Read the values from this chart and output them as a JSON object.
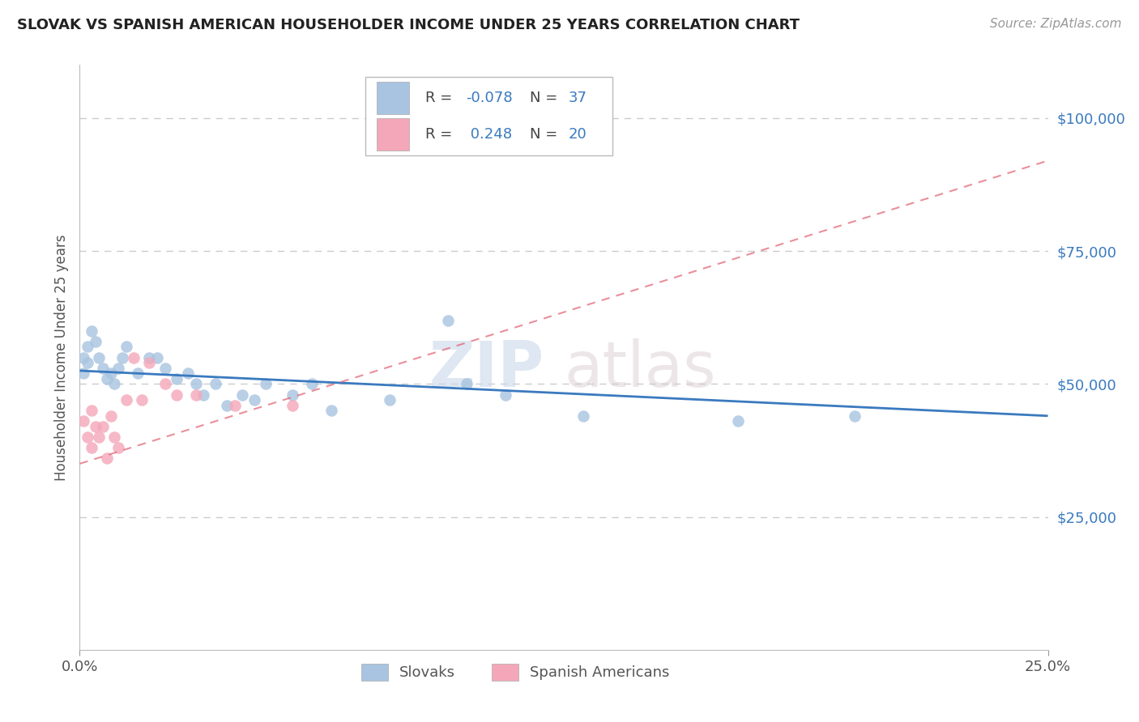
{
  "title": "SLOVAK VS SPANISH AMERICAN HOUSEHOLDER INCOME UNDER 25 YEARS CORRELATION CHART",
  "source": "Source: ZipAtlas.com",
  "ylabel": "Householder Income Under 25 years",
  "xlim": [
    0.0,
    0.25
  ],
  "ylim": [
    0,
    110000
  ],
  "ytick_values": [
    25000,
    50000,
    75000,
    100000
  ],
  "slovak_color": "#a8c4e0",
  "spanish_color": "#f4a7b9",
  "slovak_line_color": "#3a7abf",
  "spanish_line_color": "#e06070",
  "watermark_zip": "ZIP",
  "watermark_atlas": "atlas",
  "background_color": "#ffffff",
  "grid_color": "#cccccc",
  "r_slovak": -0.078,
  "n_slovak": 37,
  "r_spanish": 0.248,
  "n_spanish": 20,
  "slovak_x": [
    0.001,
    0.001,
    0.002,
    0.002,
    0.003,
    0.004,
    0.005,
    0.006,
    0.007,
    0.008,
    0.009,
    0.01,
    0.011,
    0.012,
    0.015,
    0.018,
    0.02,
    0.022,
    0.025,
    0.028,
    0.03,
    0.032,
    0.035,
    0.038,
    0.042,
    0.045,
    0.048,
    0.055,
    0.06,
    0.065,
    0.08,
    0.095,
    0.1,
    0.11,
    0.13,
    0.17,
    0.2
  ],
  "slovak_y": [
    55000,
    52000,
    57000,
    54000,
    60000,
    58000,
    55000,
    53000,
    51000,
    52000,
    50000,
    53000,
    55000,
    57000,
    52000,
    55000,
    55000,
    53000,
    51000,
    52000,
    50000,
    48000,
    50000,
    46000,
    48000,
    47000,
    50000,
    48000,
    50000,
    45000,
    47000,
    62000,
    50000,
    48000,
    44000,
    43000,
    44000
  ],
  "spanish_x": [
    0.001,
    0.002,
    0.003,
    0.003,
    0.004,
    0.005,
    0.006,
    0.007,
    0.008,
    0.009,
    0.01,
    0.012,
    0.014,
    0.016,
    0.018,
    0.022,
    0.025,
    0.03,
    0.04,
    0.055
  ],
  "spanish_y": [
    43000,
    40000,
    38000,
    45000,
    42000,
    40000,
    42000,
    36000,
    44000,
    40000,
    38000,
    47000,
    55000,
    47000,
    54000,
    50000,
    48000,
    48000,
    46000,
    46000
  ]
}
